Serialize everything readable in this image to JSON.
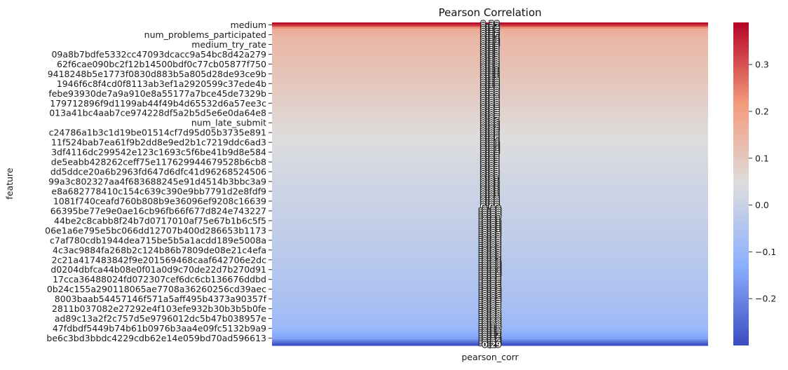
{
  "chart_data": {
    "type": "heatmap",
    "title": "Pearson Correlation",
    "xlabel": "",
    "ylabel": "feature",
    "columns": [
      "pearson_corr"
    ],
    "colormap": "coolwarm",
    "vmin": -0.3,
    "vmax": 0.39,
    "colorbar_ticks": [
      0.3,
      0.2,
      0.1,
      0.0,
      -0.1,
      -0.2
    ],
    "row_count": 159,
    "shown_row_labels": [
      "medium",
      "num_problems_participated",
      "medium_try_rate",
      "09a8b7bdfe5332cc47093dcacc9a54bc8d42a279",
      "62f6cae090bc2f12b14500bdf0c77cb05877f750",
      "9418248b5e1773f0830d883b5a805d28de93ce9b",
      "1946f6c8f4cd0f8113ab3ef1a2920599c37ede4b",
      "febe93930de7a9a910e8a55177a7bce45de7329b",
      "179712896f9d1199ab44f49b4d65532d6a57ee3c",
      "013a41bc4aab7ce974228df5a2b5d5e6e0da64e8",
      "num_late_submit",
      "c24786a1b3c1d19be01514cf7d95d05b3735e891",
      "11f524bab7ea61f9b2dd8e9ed2b1c7219ddc6ad3",
      "3df4116dc299542e123c1693c5f6be41b9d8e584",
      "de5eabb428262ceff75e117629944679528b6cb8",
      "dd5ddce20a6b2963fd647d6dfc41d96268524506",
      "99a3c802327aa4f683688245e91d4514b3bbc3a9",
      "e8a682778410c154c639c390e9bb7791d2e8fdf9",
      "1081f740ceafd760b808b9e36096ef9208c16639",
      "66395be77e9e0ae16cb96fb66f677d824e743227",
      "44be2c8cabb8f24b7d0717010af75e67b1b6c5f5",
      "06e1a6e795e5bc066dd12707b400d286653b1173",
      "c7af780cdb1944dea715be5b5a1acdd189e5008a",
      "4c3ac9884fa268b2c124b86b7809de08e21c4efa",
      "2c21a417483842f9e201569468caaf642706e2dc",
      "d0204dbfca44b08e0f01a0d9c70de22d7b270d91",
      "17cca36488024fd072307cef6dc6cb136676ddbd",
      "0b24c155a290118065ae7708a36260256cd39aec",
      "8003baab54457146f571a5aff495b4373a90357f",
      "2811b037082e27292e4f103efe932b30b3b5b0fe",
      "ad89c13a2f2c757d5e9796012dc5b47b038957e",
      "47fdbdf5449b74b61b0976b3aa4e09fc5132b9a9",
      "be6c3bd3bbdc4229cdb62e14e059bd70ad596613"
    ],
    "values_profile": {
      "note_rows": [
        0,
        1,
        2,
        3,
        7,
        14,
        20,
        40,
        60,
        80,
        100,
        120,
        140,
        150,
        155,
        158
      ],
      "note_values": [
        0.38,
        0.33,
        0.24,
        0.17,
        0.14,
        0.13,
        0.12,
        0.08,
        0.04,
        0.01,
        -0.01,
        -0.04,
        -0.07,
        -0.1,
        -0.15,
        -0.29
      ]
    }
  }
}
